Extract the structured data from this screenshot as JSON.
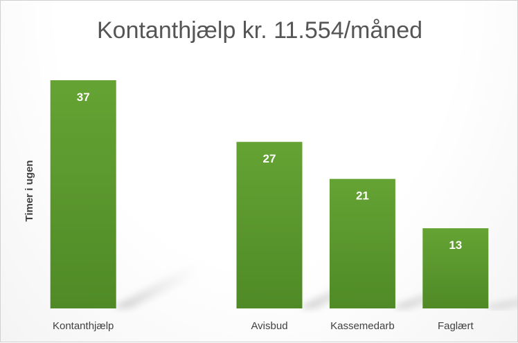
{
  "chart_data": {
    "type": "bar",
    "title": "Kontanthjælp kr. 11.554/måned",
    "ylabel": "Timer i ugen",
    "xlabel": "",
    "categories": [
      "Kontanthjælp",
      "",
      "Avisbud",
      "Kassemedarb",
      "Faglært"
    ],
    "values": [
      37,
      null,
      27,
      21,
      13
    ],
    "data_labels": [
      "37",
      "",
      "27",
      "21",
      "13"
    ],
    "ylim": [
      0,
      37
    ],
    "grid": false,
    "legend": "none",
    "bar_color": "#65a334",
    "bar_color_dark": "#4f8a26"
  }
}
